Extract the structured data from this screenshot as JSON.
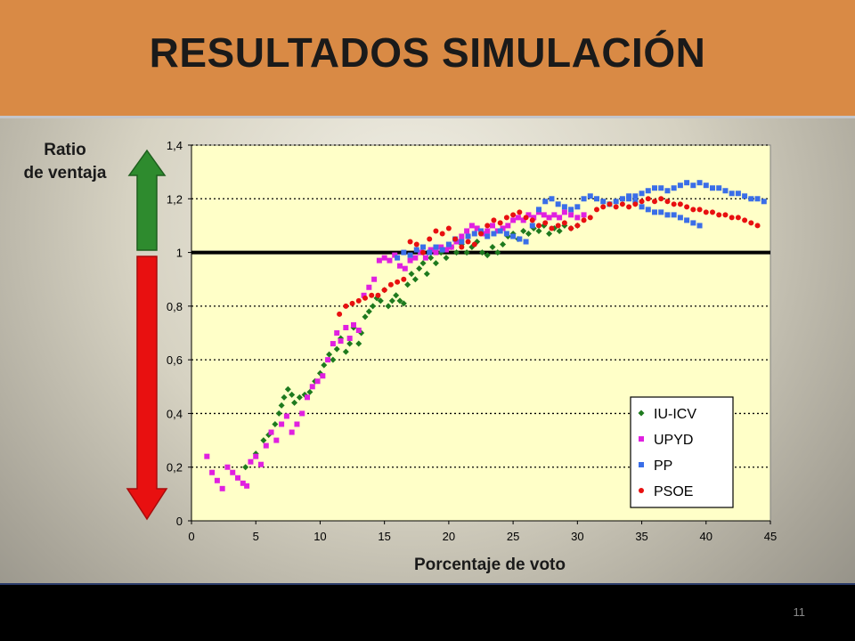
{
  "slide": {
    "title": "RESULTADOS SIMULACIÓN",
    "page_number": "11",
    "ylabel_line1": "Ratio",
    "ylabel_line2": "de ventaja",
    "xlabel": "Porcentaje de voto",
    "colors": {
      "header": "#d98a45",
      "plot_bg": "#ffffc8",
      "arrow_up": "#2e8b2e",
      "arrow_down": "#e81010"
    },
    "icons": {
      "up": "green-up-arrow-icon",
      "down": "red-down-arrow-icon"
    }
  },
  "chart_data": {
    "type": "scatter",
    "title": "",
    "xlabel": "Porcentaje de voto",
    "ylabel": "Ratio de ventaja",
    "xlim": [
      0,
      45
    ],
    "ylim": [
      0,
      1.4
    ],
    "x_ticks": [
      0,
      5,
      10,
      15,
      20,
      25,
      30,
      35,
      40,
      45
    ],
    "y_ticks": [
      0,
      0.2,
      0.4,
      0.6,
      0.8,
      1,
      1.2,
      1.4
    ],
    "y_tick_labels": [
      "0",
      "0,2",
      "0,4",
      "0,6",
      "0,8",
      "1",
      "1,2",
      "1,4"
    ],
    "reference_line_y": 1,
    "grid": "horizontal dotted",
    "legend_position": "bottom-right",
    "series": [
      {
        "name": "IU-ICV",
        "color": "#1e7a1e",
        "marker": "diamond",
        "points": [
          [
            4.2,
            0.2
          ],
          [
            5,
            0.25
          ],
          [
            5.6,
            0.3
          ],
          [
            6,
            0.32
          ],
          [
            6.5,
            0.36
          ],
          [
            6.8,
            0.4
          ],
          [
            7,
            0.43
          ],
          [
            7.2,
            0.46
          ],
          [
            7.5,
            0.49
          ],
          [
            7.8,
            0.47
          ],
          [
            8,
            0.44
          ],
          [
            8.4,
            0.46
          ],
          [
            8.8,
            0.47
          ],
          [
            9.2,
            0.48
          ],
          [
            9.6,
            0.52
          ],
          [
            10,
            0.55
          ],
          [
            10.3,
            0.58
          ],
          [
            10.7,
            0.62
          ],
          [
            11,
            0.6
          ],
          [
            11.3,
            0.64
          ],
          [
            11.6,
            0.68
          ],
          [
            12,
            0.63
          ],
          [
            12.3,
            0.66
          ],
          [
            12.6,
            0.72
          ],
          [
            13,
            0.66
          ],
          [
            13.2,
            0.7
          ],
          [
            13.5,
            0.76
          ],
          [
            13.8,
            0.78
          ],
          [
            14.1,
            0.8
          ],
          [
            14.4,
            0.83
          ],
          [
            14.7,
            0.82
          ],
          [
            15,
            0.86
          ],
          [
            15.3,
            0.8
          ],
          [
            15.6,
            0.82
          ],
          [
            15.9,
            0.84
          ],
          [
            16.2,
            0.82
          ],
          [
            16.5,
            0.81
          ],
          [
            16.8,
            0.88
          ],
          [
            17.1,
            0.92
          ],
          [
            17.4,
            0.9
          ],
          [
            17.7,
            0.94
          ],
          [
            18,
            0.96
          ],
          [
            18.3,
            0.92
          ],
          [
            18.6,
            0.98
          ],
          [
            19,
            0.96
          ],
          [
            19.4,
            1.0
          ],
          [
            19.8,
            0.98
          ],
          [
            20.2,
            1.02
          ],
          [
            20.6,
            1.0
          ],
          [
            21,
            1.03
          ],
          [
            21.4,
            1.0
          ],
          [
            21.8,
            1.02
          ],
          [
            22.2,
            1.04
          ],
          [
            22.6,
            1.0
          ],
          [
            23,
            0.99
          ],
          [
            23.4,
            1.02
          ],
          [
            23.8,
            1.0
          ],
          [
            24.2,
            1.03
          ],
          [
            24.6,
            1.06
          ],
          [
            25,
            1.07
          ],
          [
            25.4,
            1.05
          ],
          [
            25.8,
            1.08
          ],
          [
            26.2,
            1.07
          ],
          [
            26.6,
            1.09
          ],
          [
            27,
            1.08
          ],
          [
            27.4,
            1.1
          ],
          [
            27.8,
            1.07
          ],
          [
            28.2,
            1.09
          ],
          [
            28.6,
            1.08
          ],
          [
            29,
            1.1
          ],
          [
            29.5,
            1.09
          ],
          [
            30,
            1.1
          ]
        ]
      },
      {
        "name": "UPYD",
        "color": "#e020e0",
        "marker": "square",
        "points": [
          [
            1.2,
            0.24
          ],
          [
            1.6,
            0.18
          ],
          [
            2,
            0.15
          ],
          [
            2.4,
            0.12
          ],
          [
            2.8,
            0.2
          ],
          [
            3.2,
            0.18
          ],
          [
            3.6,
            0.16
          ],
          [
            4,
            0.14
          ],
          [
            4.3,
            0.13
          ],
          [
            4.6,
            0.22
          ],
          [
            5,
            0.24
          ],
          [
            5.4,
            0.21
          ],
          [
            5.8,
            0.28
          ],
          [
            6.2,
            0.33
          ],
          [
            6.6,
            0.3
          ],
          [
            7,
            0.36
          ],
          [
            7.4,
            0.39
          ],
          [
            7.8,
            0.33
          ],
          [
            8.2,
            0.36
          ],
          [
            8.6,
            0.4
          ],
          [
            9,
            0.46
          ],
          [
            9.4,
            0.5
          ],
          [
            9.8,
            0.52
          ],
          [
            10.2,
            0.54
          ],
          [
            10.6,
            0.6
          ],
          [
            11,
            0.66
          ],
          [
            11.3,
            0.7
          ],
          [
            11.6,
            0.67
          ],
          [
            12,
            0.72
          ],
          [
            12.3,
            0.68
          ],
          [
            12.6,
            0.73
          ],
          [
            13,
            0.71
          ],
          [
            13.4,
            0.84
          ],
          [
            13.8,
            0.87
          ],
          [
            14.2,
            0.9
          ],
          [
            14.6,
            0.97
          ],
          [
            15,
            0.98
          ],
          [
            15.4,
            0.97
          ],
          [
            15.8,
            0.99
          ],
          [
            16.2,
            0.95
          ],
          [
            16.6,
            0.94
          ],
          [
            17,
            0.97
          ],
          [
            17.4,
            0.98
          ],
          [
            17.8,
            1.0
          ],
          [
            18.2,
            0.98
          ],
          [
            18.6,
            1.01
          ],
          [
            19,
            1.0
          ],
          [
            19.4,
            1.02
          ],
          [
            19.8,
            1.01
          ],
          [
            20.2,
            1.02
          ],
          [
            20.6,
            1.04
          ],
          [
            21,
            1.06
          ],
          [
            21.4,
            1.08
          ],
          [
            21.8,
            1.1
          ],
          [
            22.2,
            1.09
          ],
          [
            22.6,
            1.07
          ],
          [
            23,
            1.08
          ],
          [
            23.4,
            1.1
          ],
          [
            23.8,
            1.08
          ],
          [
            24.2,
            1.09
          ],
          [
            24.6,
            1.1
          ],
          [
            25,
            1.12
          ],
          [
            25.4,
            1.13
          ],
          [
            25.8,
            1.12
          ],
          [
            26.2,
            1.14
          ],
          [
            26.6,
            1.13
          ],
          [
            27,
            1.15
          ],
          [
            27.4,
            1.14
          ],
          [
            27.8,
            1.13
          ],
          [
            28.2,
            1.14
          ],
          [
            28.6,
            1.13
          ],
          [
            29,
            1.15
          ],
          [
            29.5,
            1.14
          ],
          [
            30,
            1.13
          ],
          [
            30.5,
            1.14
          ]
        ]
      },
      {
        "name": "PP",
        "color": "#3a6ee8",
        "marker": "square",
        "points": [
          [
            16,
            0.98
          ],
          [
            16.5,
            1.0
          ],
          [
            17,
            0.99
          ],
          [
            17.5,
            1.01
          ],
          [
            18,
            1.02
          ],
          [
            18.5,
            1.0
          ],
          [
            19,
            1.02
          ],
          [
            19.5,
            1.01
          ],
          [
            20,
            1.03
          ],
          [
            20.5,
            1.05
          ],
          [
            21,
            1.04
          ],
          [
            21.5,
            1.06
          ],
          [
            22,
            1.07
          ],
          [
            22.5,
            1.08
          ],
          [
            23,
            1.06
          ],
          [
            23.5,
            1.07
          ],
          [
            24,
            1.08
          ],
          [
            24.5,
            1.07
          ],
          [
            25,
            1.06
          ],
          [
            25.5,
            1.05
          ],
          [
            26,
            1.04
          ],
          [
            26.5,
            1.1
          ],
          [
            27,
            1.16
          ],
          [
            27.5,
            1.19
          ],
          [
            28,
            1.2
          ],
          [
            28.5,
            1.18
          ],
          [
            29,
            1.17
          ],
          [
            29.5,
            1.16
          ],
          [
            30,
            1.17
          ],
          [
            30.5,
            1.2
          ],
          [
            31,
            1.21
          ],
          [
            31.5,
            1.2
          ],
          [
            32,
            1.19
          ],
          [
            32.5,
            1.18
          ],
          [
            33,
            1.19
          ],
          [
            33.5,
            1.2
          ],
          [
            34,
            1.21
          ],
          [
            34.5,
            1.19
          ],
          [
            35,
            1.17
          ],
          [
            35.5,
            1.16
          ],
          [
            36,
            1.15
          ],
          [
            36.5,
            1.15
          ],
          [
            37,
            1.14
          ],
          [
            37.5,
            1.14
          ],
          [
            38,
            1.13
          ],
          [
            38.5,
            1.12
          ],
          [
            39,
            1.11
          ],
          [
            39.5,
            1.1
          ],
          [
            34,
            1.2
          ],
          [
            34.5,
            1.21
          ],
          [
            35,
            1.22
          ],
          [
            35.5,
            1.23
          ],
          [
            36,
            1.24
          ],
          [
            36.5,
            1.24
          ],
          [
            37,
            1.23
          ],
          [
            37.5,
            1.24
          ],
          [
            38,
            1.25
          ],
          [
            38.5,
            1.26
          ],
          [
            39,
            1.25
          ],
          [
            39.5,
            1.26
          ],
          [
            40,
            1.25
          ],
          [
            40.5,
            1.24
          ],
          [
            41,
            1.24
          ],
          [
            41.5,
            1.23
          ],
          [
            42,
            1.22
          ],
          [
            42.5,
            1.22
          ],
          [
            43,
            1.21
          ],
          [
            43.5,
            1.2
          ],
          [
            44,
            1.2
          ],
          [
            44.5,
            1.19
          ]
        ]
      },
      {
        "name": "PSOE",
        "color": "#e81010",
        "marker": "circle",
        "points": [
          [
            11.5,
            0.77
          ],
          [
            12,
            0.8
          ],
          [
            12.5,
            0.81
          ],
          [
            13,
            0.82
          ],
          [
            13.5,
            0.83
          ],
          [
            14,
            0.84
          ],
          [
            14.5,
            0.84
          ],
          [
            15,
            0.86
          ],
          [
            15.5,
            0.88
          ],
          [
            16,
            0.89
          ],
          [
            16.5,
            0.9
          ],
          [
            17,
            1.04
          ],
          [
            17.5,
            1.03
          ],
          [
            18,
            1.0
          ],
          [
            18.5,
            1.05
          ],
          [
            19,
            1.08
          ],
          [
            19.5,
            1.07
          ],
          [
            20,
            1.09
          ],
          [
            20.5,
            1.05
          ],
          [
            21,
            1.02
          ],
          [
            21.5,
            1.04
          ],
          [
            22,
            1.03
          ],
          [
            22.5,
            1.07
          ],
          [
            23,
            1.1
          ],
          [
            23.5,
            1.12
          ],
          [
            24,
            1.11
          ],
          [
            24.5,
            1.13
          ],
          [
            25,
            1.14
          ],
          [
            25.5,
            1.15
          ],
          [
            26,
            1.13
          ],
          [
            26.5,
            1.12
          ],
          [
            27,
            1.1
          ],
          [
            27.5,
            1.11
          ],
          [
            28,
            1.09
          ],
          [
            28.5,
            1.1
          ],
          [
            29,
            1.11
          ],
          [
            29.5,
            1.09
          ],
          [
            30,
            1.1
          ],
          [
            30.5,
            1.12
          ],
          [
            31,
            1.13
          ],
          [
            31.5,
            1.16
          ],
          [
            32,
            1.17
          ],
          [
            32.5,
            1.18
          ],
          [
            33,
            1.17
          ],
          [
            33.5,
            1.18
          ],
          [
            34,
            1.17
          ],
          [
            34.5,
            1.18
          ],
          [
            35,
            1.19
          ],
          [
            35.5,
            1.2
          ],
          [
            36,
            1.19
          ],
          [
            36.5,
            1.2
          ],
          [
            37,
            1.19
          ],
          [
            37.5,
            1.18
          ],
          [
            38,
            1.18
          ],
          [
            38.5,
            1.17
          ],
          [
            39,
            1.16
          ],
          [
            39.5,
            1.16
          ],
          [
            40,
            1.15
          ],
          [
            40.5,
            1.15
          ],
          [
            41,
            1.14
          ],
          [
            41.5,
            1.14
          ],
          [
            42,
            1.13
          ],
          [
            42.5,
            1.13
          ],
          [
            43,
            1.12
          ],
          [
            43.5,
            1.11
          ],
          [
            44,
            1.1
          ]
        ]
      }
    ]
  }
}
